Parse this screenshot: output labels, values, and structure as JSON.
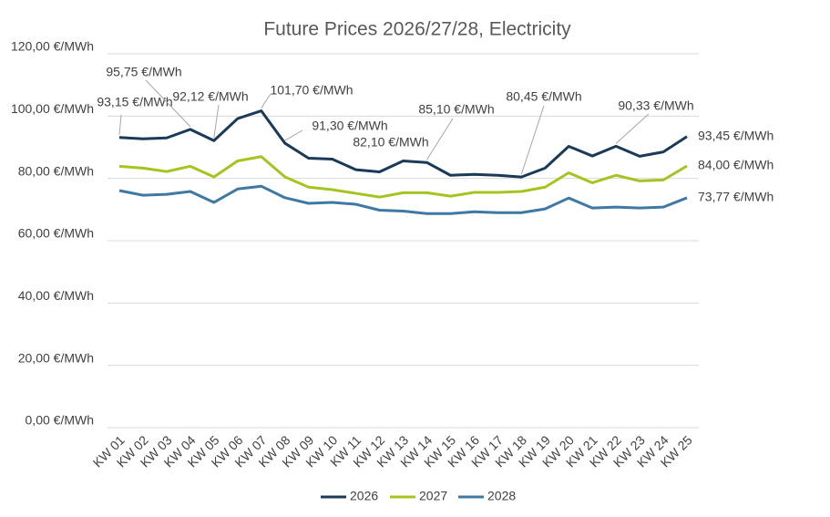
{
  "chart_data": {
    "type": "line",
    "title": "Future Prices 2026/27/28, Electricity",
    "categories": [
      "KW 01",
      "KW 02",
      "KW 03",
      "KW 04",
      "KW 05",
      "KW 06",
      "KW 07",
      "KW 08",
      "KW 09",
      "KW 10",
      "KW 11",
      "KW 12",
      "KW 13",
      "KW 14",
      "KW 15",
      "KW 16",
      "KW 17",
      "KW 18",
      "KW 19",
      "KW 20",
      "KW 21",
      "KW 22",
      "KW 23",
      "KW 24",
      "KW 25"
    ],
    "series": [
      {
        "name": "2026",
        "color": "#1b3a57",
        "values": [
          93.15,
          92.7,
          93.0,
          95.75,
          92.12,
          99.2,
          101.7,
          91.3,
          86.5,
          86.2,
          82.8,
          82.1,
          85.6,
          85.1,
          81.0,
          81.3,
          81.0,
          80.45,
          83.3,
          90.3,
          87.2,
          90.33,
          87.1,
          88.5,
          93.45
        ],
        "value_labels": [
          "93,15 €/MWh",
          null,
          null,
          "95,75 €/MWh",
          "92,12 €/MWh",
          null,
          "101,70 €/MWh",
          "91,30 €/MWh",
          null,
          null,
          null,
          "82,10 €/MWh",
          null,
          "85,10 €/MWh",
          null,
          null,
          null,
          "80,45 €/MWh",
          null,
          null,
          null,
          "90,33 €/MWh",
          null,
          null,
          "93,45 €/MWh"
        ]
      },
      {
        "name": "2027",
        "color": "#a4c520",
        "values": [
          83.9,
          83.3,
          82.2,
          83.9,
          80.5,
          85.6,
          87.0,
          80.5,
          77.2,
          76.4,
          75.2,
          74.0,
          75.4,
          75.4,
          74.3,
          75.5,
          75.5,
          75.8,
          77.2,
          81.8,
          78.6,
          81.0,
          79.2,
          79.5,
          84.0
        ],
        "value_labels": [
          null,
          null,
          null,
          null,
          null,
          null,
          null,
          null,
          null,
          null,
          null,
          null,
          null,
          null,
          null,
          null,
          null,
          null,
          null,
          null,
          null,
          null,
          null,
          null,
          "84,00 €/MWh"
        ]
      },
      {
        "name": "2028",
        "color": "#3f79a3",
        "values": [
          76.1,
          74.6,
          74.9,
          75.8,
          72.3,
          76.6,
          77.5,
          73.8,
          72.0,
          72.3,
          71.7,
          69.8,
          69.5,
          68.7,
          68.7,
          69.3,
          69.0,
          69.0,
          70.2,
          73.7,
          70.5,
          70.8,
          70.5,
          70.8,
          73.77
        ],
        "value_labels": [
          null,
          null,
          null,
          null,
          null,
          null,
          null,
          null,
          null,
          null,
          null,
          null,
          null,
          null,
          null,
          null,
          null,
          null,
          null,
          null,
          null,
          null,
          null,
          null,
          "73,77 €/MWh"
        ]
      }
    ],
    "ylim": [
      0,
      120
    ],
    "yticks": [
      {
        "value": 0,
        "label": "0,00 €/MWh"
      },
      {
        "value": 20,
        "label": "20,00 €/MWh"
      },
      {
        "value": 40,
        "label": "40,00 €/MWh"
      },
      {
        "value": 60,
        "label": "60,00 €/MWh"
      },
      {
        "value": 80,
        "label": "80,00 €/MWh"
      },
      {
        "value": 100,
        "label": "100,00 €/MWh"
      },
      {
        "value": 120,
        "label": "120,00 €/MWh"
      }
    ],
    "grid": true,
    "legend": "bottom"
  }
}
